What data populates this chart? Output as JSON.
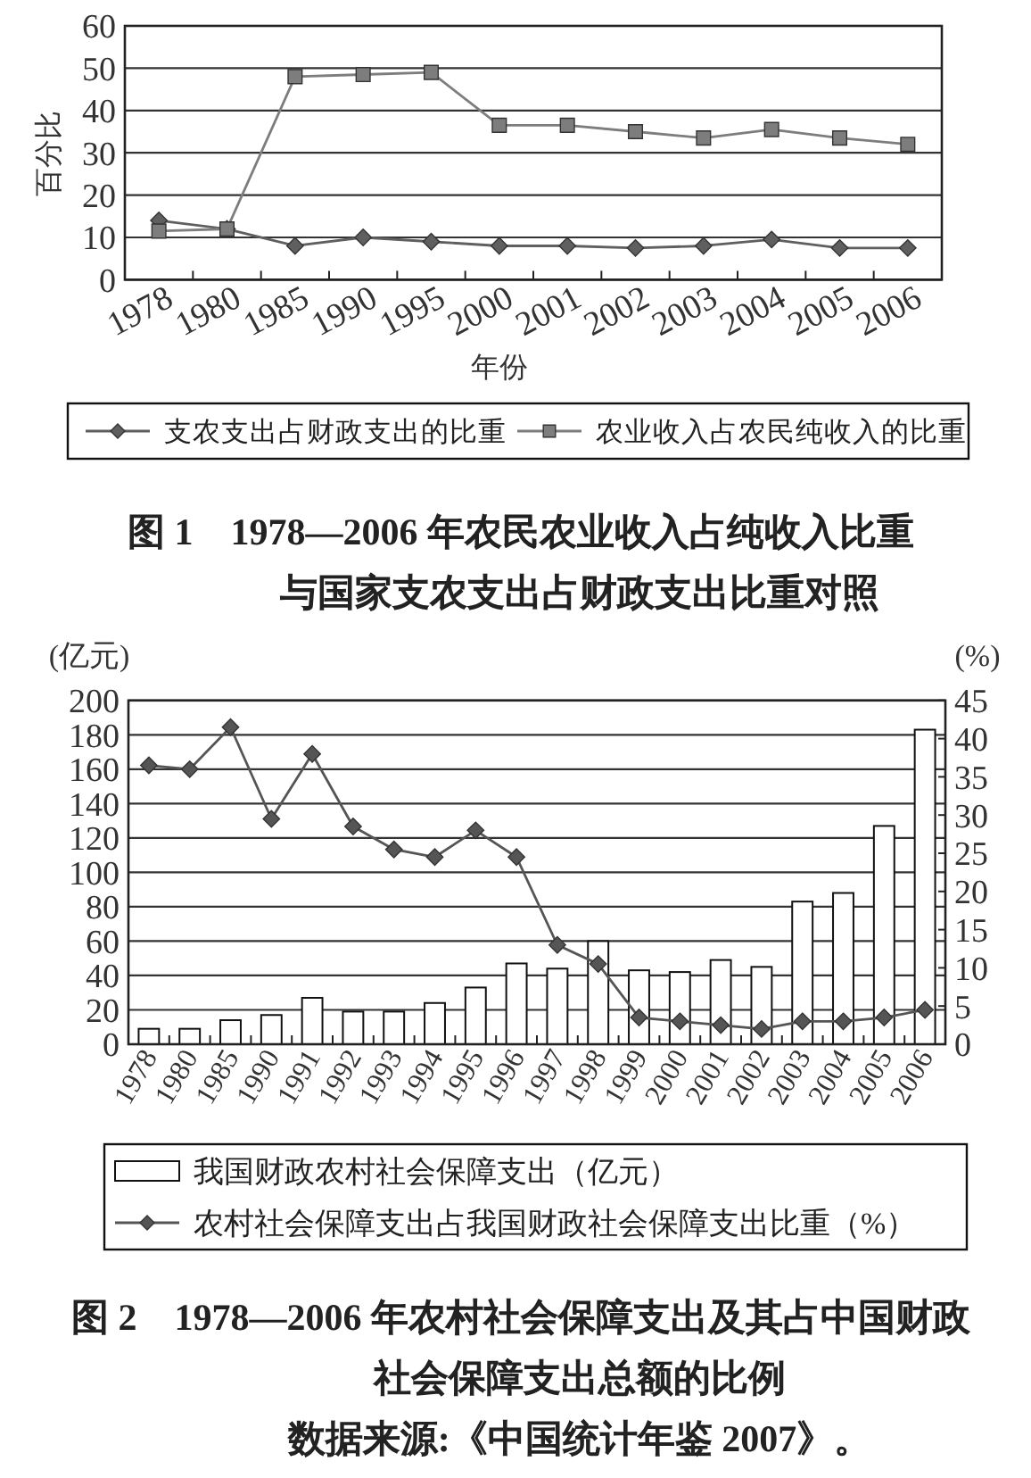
{
  "chart_data": [
    {
      "type": "line",
      "title": "图 1　1978—2006 年农民农业收入占纯收入比重与国家支农支出占财政支出比重对照",
      "xlabel": "年份",
      "ylabel": "百分比",
      "categories": [
        "1978",
        "1980",
        "1985",
        "1990",
        "1995",
        "2000",
        "2001",
        "2002",
        "2003",
        "2004",
        "2005",
        "2006"
      ],
      "series": [
        {
          "name": "支农支出占财政支出的比重",
          "color": "#5f5f5f",
          "marker": "diamond",
          "values": [
            14,
            12,
            8,
            10,
            9,
            8,
            8,
            7.5,
            8,
            9.5,
            7.5,
            7.5
          ]
        },
        {
          "name": "农业收入占农民纯收入的比重",
          "color": "#7d7d7d",
          "marker": "square",
          "values": [
            11.5,
            12,
            48,
            48.5,
            49,
            36.5,
            36.5,
            35,
            33.5,
            35.5,
            33.5,
            32
          ]
        }
      ],
      "ylim": [
        0,
        60
      ],
      "yticks": [
        0,
        10,
        20,
        30,
        40,
        50,
        60
      ],
      "grid": "y",
      "legend": "bottom"
    },
    {
      "type": "bar",
      "title": "图 2　1978—2006 年农村社会保障支出及其占中国财政社会保障支出总额的比例",
      "ylabel": "(亿元)",
      "y2label": "(%)",
      "categories": [
        "1978",
        "1980",
        "1985",
        "1990",
        "1991",
        "1992",
        "1993",
        "1994",
        "1995",
        "1996",
        "1997",
        "1998",
        "1999",
        "2000",
        "2001",
        "2002",
        "2003",
        "2004",
        "2005",
        "2006"
      ],
      "series": [
        {
          "name": "我国财政农村社会保障支出（亿元）",
          "color": "#ffffff",
          "values": [
            9,
            9,
            14,
            17,
            27,
            19,
            19,
            24,
            33,
            47,
            44,
            60,
            43,
            42,
            49,
            45,
            83,
            88,
            127,
            183
          ]
        },
        {
          "name": "农村社会保障支出占我国财政社会保障支出比重（%）",
          "type": "line",
          "axis": "y2",
          "color": "#555555",
          "marker": "diamond",
          "values": [
            36.5,
            36,
            41.5,
            29.5,
            38,
            28.5,
            25.5,
            24.5,
            28,
            24.5,
            13,
            10.5,
            3.5,
            3,
            2.5,
            2,
            3,
            3,
            3.5,
            4.5
          ]
        }
      ],
      "ylim": [
        0,
        200
      ],
      "yticks": [
        0,
        20,
        40,
        60,
        80,
        100,
        120,
        140,
        160,
        180,
        200
      ],
      "y2lim": [
        0,
        45
      ],
      "y2ticks": [
        0,
        5,
        10,
        15,
        20,
        25,
        30,
        35,
        40,
        45
      ],
      "grid": "y",
      "legend": "bottom",
      "annotations": [
        "数据来源:《中国统计年鉴 2007》。"
      ]
    }
  ]
}
